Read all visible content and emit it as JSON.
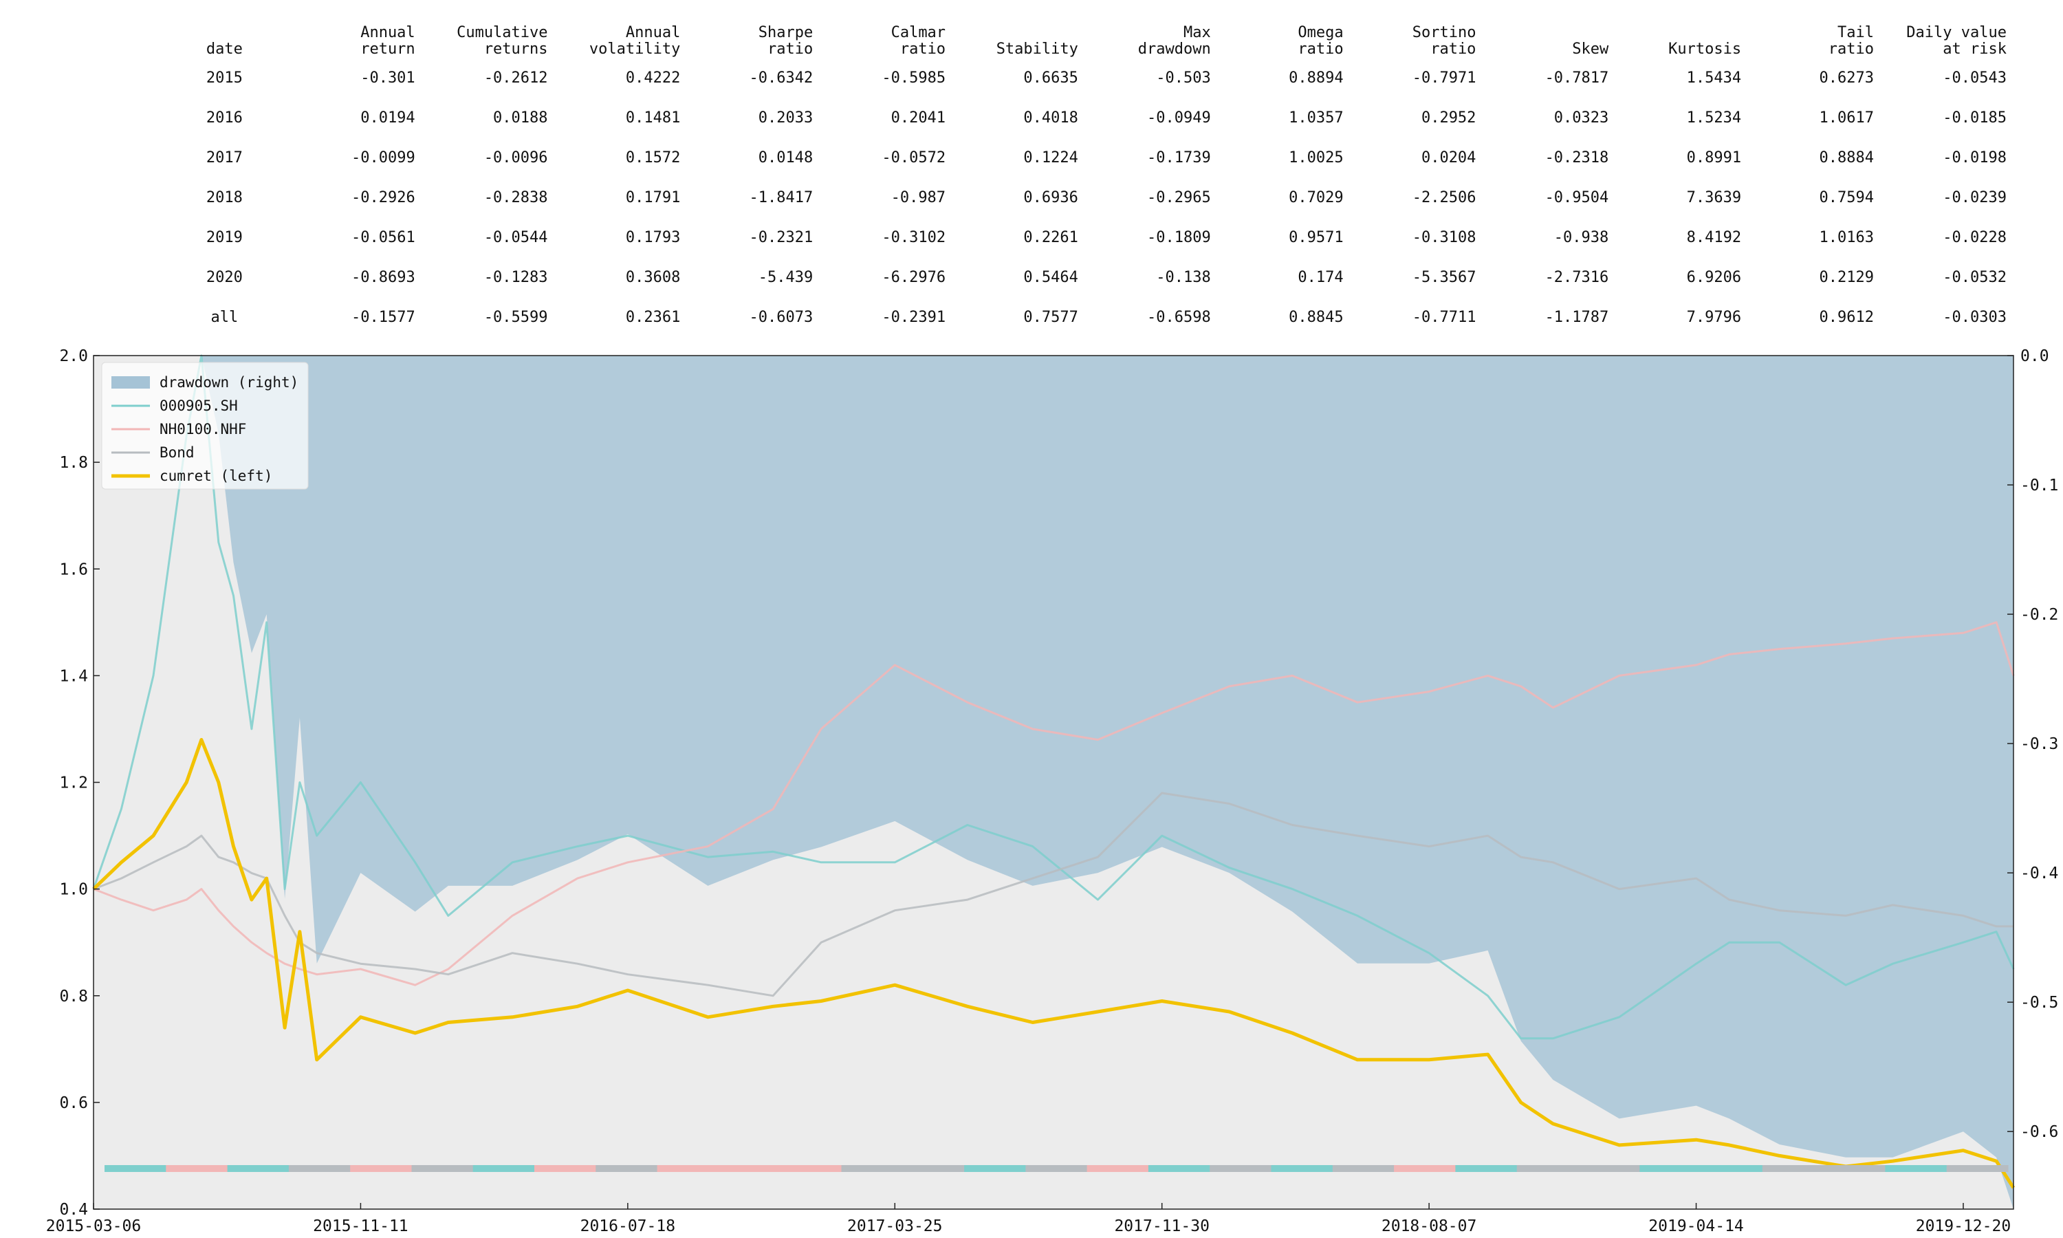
{
  "table": {
    "headers": [
      [
        "date"
      ],
      [
        "Annual",
        "return"
      ],
      [
        "Cumulative",
        "returns"
      ],
      [
        "Annual",
        "volatility"
      ],
      [
        "Sharpe",
        "ratio"
      ],
      [
        "Calmar",
        "ratio"
      ],
      [
        "Stability"
      ],
      [
        "Max",
        "drawdown"
      ],
      [
        "Omega",
        "ratio"
      ],
      [
        "Sortino",
        "ratio"
      ],
      [
        "Skew"
      ],
      [
        "Kurtosis"
      ],
      [
        "Tail",
        "ratio"
      ],
      [
        "Daily value",
        "at risk"
      ]
    ],
    "rows": [
      [
        "2015",
        "-0.301",
        "-0.2612",
        "0.4222",
        "-0.6342",
        "-0.5985",
        "0.6635",
        "-0.503",
        "0.8894",
        "-0.7971",
        "-0.7817",
        "1.5434",
        "0.6273",
        "-0.0543"
      ],
      [
        "2016",
        "0.0194",
        "0.0188",
        "0.1481",
        "0.2033",
        "0.2041",
        "0.4018",
        "-0.0949",
        "1.0357",
        "0.2952",
        "0.0323",
        "1.5234",
        "1.0617",
        "-0.0185"
      ],
      [
        "2017",
        "-0.0099",
        "-0.0096",
        "0.1572",
        "0.0148",
        "-0.0572",
        "0.1224",
        "-0.1739",
        "1.0025",
        "0.0204",
        "-0.2318",
        "0.8991",
        "0.8884",
        "-0.0198"
      ],
      [
        "2018",
        "-0.2926",
        "-0.2838",
        "0.1791",
        "-1.8417",
        "-0.987",
        "0.6936",
        "-0.2965",
        "0.7029",
        "-2.2506",
        "-0.9504",
        "7.3639",
        "0.7594",
        "-0.0239"
      ],
      [
        "2019",
        "-0.0561",
        "-0.0544",
        "0.1793",
        "-0.2321",
        "-0.3102",
        "0.2261",
        "-0.1809",
        "0.9571",
        "-0.3108",
        "-0.938",
        "8.4192",
        "1.0163",
        "-0.0228"
      ],
      [
        "2020",
        "-0.8693",
        "-0.1283",
        "0.3608",
        "-5.439",
        "-6.2976",
        "0.5464",
        "-0.138",
        "0.174",
        "-5.3567",
        "-2.7316",
        "6.9206",
        "0.2129",
        "-0.0532"
      ],
      [
        "all",
        "-0.1577",
        "-0.5599",
        "0.2361",
        "-0.6073",
        "-0.2391",
        "0.7577",
        "-0.6598",
        "0.8845",
        "-0.7711",
        "-1.1787",
        "7.9796",
        "0.9612",
        "-0.0303"
      ]
    ]
  },
  "chart_data": {
    "type": "line",
    "x": [
      "2015-03-06",
      "2015-04-01",
      "2015-05-01",
      "2015-06-01",
      "2015-06-15",
      "2015-07-01",
      "2015-07-15",
      "2015-08-01",
      "2015-08-15",
      "2015-09-01",
      "2015-09-15",
      "2015-10-01",
      "2015-11-11",
      "2016-01-01",
      "2016-02-01",
      "2016-04-01",
      "2016-06-01",
      "2016-07-18",
      "2016-10-01",
      "2016-12-01",
      "2017-01-15",
      "2017-03-25",
      "2017-06-01",
      "2017-08-01",
      "2017-10-01",
      "2017-11-30",
      "2018-02-01",
      "2018-04-01",
      "2018-06-01",
      "2018-08-07",
      "2018-10-01",
      "2018-11-01",
      "2018-12-01",
      "2019-02-01",
      "2019-04-14",
      "2019-05-15",
      "2019-07-01",
      "2019-09-01",
      "2019-10-15",
      "2019-12-20",
      "2020-01-20",
      "2020-02-05"
    ],
    "series": [
      {
        "name": "000905.SH",
        "axis": "left",
        "color": "#7ecfcd",
        "values": [
          1.0,
          1.15,
          1.4,
          1.85,
          2.0,
          1.65,
          1.55,
          1.3,
          1.5,
          1.0,
          1.2,
          1.1,
          1.2,
          1.05,
          0.95,
          1.05,
          1.08,
          1.1,
          1.06,
          1.07,
          1.05,
          1.05,
          1.12,
          1.08,
          0.98,
          1.1,
          1.04,
          1.0,
          0.95,
          0.88,
          0.8,
          0.72,
          0.72,
          0.76,
          0.86,
          0.9,
          0.9,
          0.82,
          0.86,
          0.9,
          0.92,
          0.85
        ]
      },
      {
        "name": "NH0100.NHF",
        "axis": "left",
        "color": "#f2b6b6",
        "values": [
          1.0,
          0.98,
          0.96,
          0.98,
          1.0,
          0.96,
          0.93,
          0.9,
          0.88,
          0.86,
          0.85,
          0.84,
          0.85,
          0.82,
          0.85,
          0.95,
          1.02,
          1.05,
          1.08,
          1.15,
          1.3,
          1.42,
          1.35,
          1.3,
          1.28,
          1.33,
          1.38,
          1.4,
          1.35,
          1.37,
          1.4,
          1.38,
          1.34,
          1.4,
          1.42,
          1.44,
          1.45,
          1.46,
          1.47,
          1.48,
          1.5,
          1.4
        ]
      },
      {
        "name": "Bond",
        "axis": "left",
        "color": "#b7bcc0",
        "values": [
          1.0,
          1.02,
          1.05,
          1.08,
          1.1,
          1.06,
          1.05,
          1.03,
          1.02,
          0.95,
          0.9,
          0.88,
          0.86,
          0.85,
          0.84,
          0.88,
          0.86,
          0.84,
          0.82,
          0.8,
          0.9,
          0.96,
          0.98,
          1.02,
          1.06,
          1.18,
          1.16,
          1.12,
          1.1,
          1.08,
          1.1,
          1.06,
          1.05,
          1.0,
          1.02,
          0.98,
          0.96,
          0.95,
          0.97,
          0.95,
          0.93,
          0.93
        ]
      },
      {
        "name": "cumret (left)",
        "axis": "left",
        "color": "#f2c200",
        "values": [
          1.0,
          1.05,
          1.1,
          1.2,
          1.28,
          1.2,
          1.08,
          0.98,
          1.02,
          0.74,
          0.92,
          0.68,
          0.76,
          0.73,
          0.75,
          0.76,
          0.78,
          0.81,
          0.76,
          0.78,
          0.79,
          0.82,
          0.78,
          0.75,
          0.77,
          0.79,
          0.77,
          0.73,
          0.68,
          0.68,
          0.69,
          0.6,
          0.56,
          0.52,
          0.53,
          0.52,
          0.5,
          0.48,
          0.49,
          0.51,
          0.49,
          0.44
        ]
      },
      {
        "name": "drawdown (right)",
        "axis": "right",
        "color": "#a5c3d6",
        "values": [
          0.0,
          0.0,
          0.0,
          0.0,
          0.0,
          -0.06,
          -0.16,
          -0.23,
          -0.2,
          -0.42,
          -0.28,
          -0.47,
          -0.4,
          -0.43,
          -0.41,
          -0.41,
          -0.39,
          -0.37,
          -0.41,
          -0.39,
          -0.38,
          -0.36,
          -0.39,
          -0.41,
          -0.4,
          -0.38,
          -0.4,
          -0.43,
          -0.47,
          -0.47,
          -0.46,
          -0.53,
          -0.56,
          -0.59,
          -0.58,
          -0.59,
          -0.61,
          -0.62,
          -0.62,
          -0.6,
          -0.62,
          -0.66
        ]
      }
    ],
    "regime_strip": [
      "teal",
      "red",
      "teal",
      "gray",
      "red",
      "gray",
      "teal",
      "red",
      "gray",
      "red",
      "red",
      "red",
      "gray",
      "gray",
      "teal",
      "gray",
      "red",
      "teal",
      "gray",
      "teal",
      "gray",
      "red",
      "teal",
      "gray",
      "gray",
      "teal",
      "teal",
      "gray",
      "gray",
      "teal",
      "gray"
    ],
    "legend": {
      "placement": "top-left",
      "entries": [
        "drawdown (right)",
        "000905.SH",
        "NH0100.NHF",
        "Bond",
        "cumret (left)"
      ]
    },
    "left_axis": {
      "ylim": [
        0.4,
        2.0
      ],
      "ticks": [
        "0.4",
        "0.6",
        "0.8",
        "1.0",
        "1.2",
        "1.4",
        "1.6",
        "1.8",
        "2.0"
      ]
    },
    "right_axis": {
      "ylim": [
        -0.66,
        0.0
      ],
      "ticks": [
        "0.0",
        "-0.1",
        "-0.2",
        "-0.3",
        "-0.4",
        "-0.5",
        "-0.6"
      ]
    },
    "x_ticks": [
      "2015-03-06",
      "2015-11-11",
      "2016-07-18",
      "2017-03-25",
      "2017-11-30",
      "2018-08-07",
      "2019-04-14",
      "2019-12-20"
    ],
    "grid": false,
    "background": "#ececec"
  }
}
